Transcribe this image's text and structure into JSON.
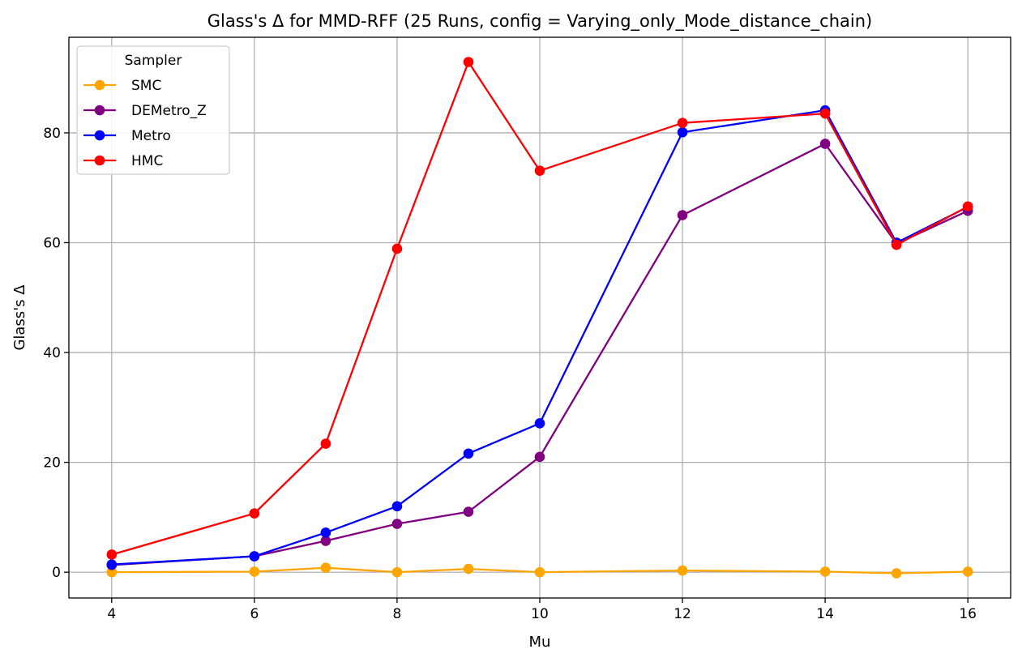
{
  "chart_data": {
    "type": "line",
    "title": "Glass's Δ for MMD-RFF (25 Runs, config = Varying_only_Mode_distance_chain)",
    "xlabel": "Mu",
    "ylabel": "Glass's Δ",
    "xlim": [
      3.4,
      16.6
    ],
    "ylim": [
      -4.7,
      97.4
    ],
    "xticks": [
      4,
      6,
      8,
      10,
      12,
      14,
      16
    ],
    "yticks": [
      0,
      20,
      40,
      60,
      80
    ],
    "grid": true,
    "legend": {
      "title": "Sampler",
      "placement": "top-left"
    },
    "x": [
      4,
      6,
      7,
      8,
      9,
      10,
      12,
      14,
      15,
      16
    ],
    "series": [
      {
        "name": "SMC",
        "color": "#ffa500",
        "values": [
          0.0,
          0.1,
          0.8,
          0.0,
          0.6,
          0.0,
          0.3,
          0.1,
          -0.2,
          0.1
        ]
      },
      {
        "name": "DEMetro_Z",
        "color": "#800080",
        "values": [
          1.3,
          2.9,
          5.7,
          8.8,
          11.0,
          21.0,
          65.0,
          78.0,
          59.8,
          65.8
        ]
      },
      {
        "name": "Metro",
        "color": "#0000ff",
        "values": [
          1.4,
          2.9,
          7.2,
          12.0,
          21.6,
          27.1,
          80.1,
          84.1,
          60.0,
          66.5
        ]
      },
      {
        "name": "HMC",
        "color": "#ff0000",
        "values": [
          3.2,
          10.7,
          23.4,
          58.9,
          92.9,
          73.1,
          81.8,
          83.5,
          59.6,
          66.6
        ]
      }
    ]
  }
}
